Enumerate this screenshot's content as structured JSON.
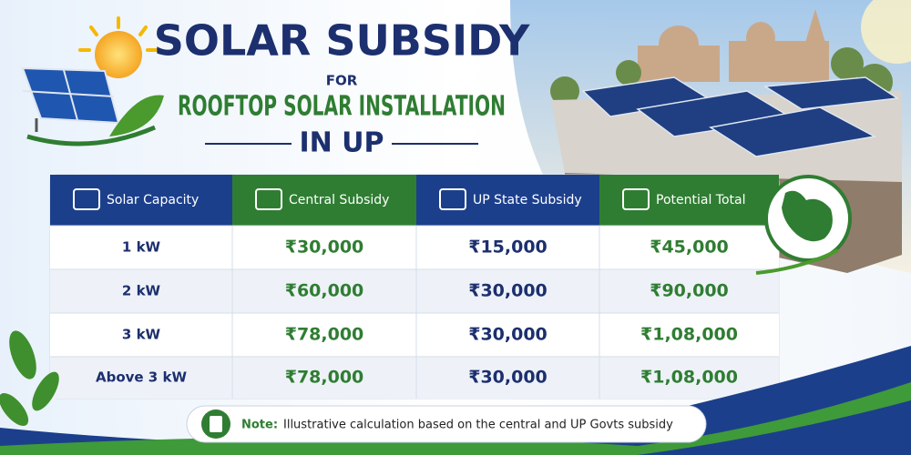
{
  "header": {
    "title": "SOLAR SUBSIDY",
    "connector": "FOR",
    "subtitle": "ROOFTOP SOLAR INSTALLATION",
    "region": "IN UP"
  },
  "table": {
    "columns": [
      "Solar Capacity",
      "Central Subsidy",
      "UP State Subsidy",
      "Potential Total"
    ],
    "rows": [
      [
        "1 kW",
        "₹30,000",
        "₹15,000",
        "₹45,000"
      ],
      [
        "2 kW",
        "₹60,000",
        "₹30,000",
        "₹90,000"
      ],
      [
        "3 kW",
        "₹78,000",
        "₹30,000",
        "₹1,08,000"
      ],
      [
        "Above 3 kW",
        "₹78,000",
        "₹30,000",
        "₹1,08,000"
      ]
    ]
  },
  "note": {
    "label": "Note:",
    "text": "Illustrative calculation based on the central and UP Govts subsidy"
  }
}
